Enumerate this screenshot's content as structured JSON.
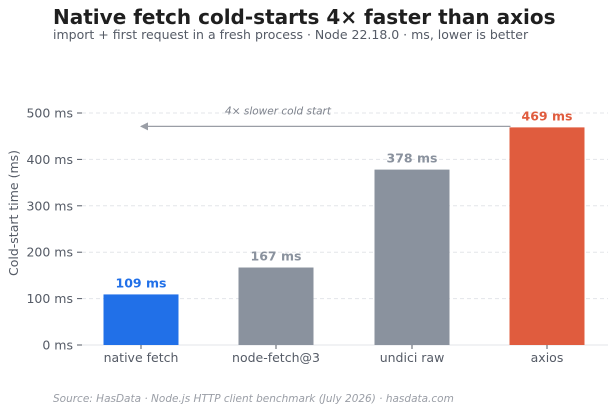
{
  "header": {
    "title": "Native fetch cold-starts 4× faster than axios",
    "subtitle": "import + first request in a fresh process · Node 22.18.0 · ms, lower is better"
  },
  "footer": {
    "source": "Source: HasData  ·  Node.js HTTP client benchmark (July 2026)  ·  hasdata.com"
  },
  "chart_data": {
    "type": "bar",
    "title": "Native fetch cold-starts 4× faster than axios",
    "subtitle": "import + first request in a fresh process · Node 22.18.0 · ms, lower is better",
    "xlabel": "",
    "ylabel": "Cold-start time (ms)",
    "categories": [
      "native fetch",
      "node-fetch@3",
      "undici raw",
      "axios"
    ],
    "values": [
      109,
      167,
      378,
      469
    ],
    "value_labels": [
      "109 ms",
      "167 ms",
      "378 ms",
      "469 ms"
    ],
    "colors": [
      "#2170e8",
      "#8a929e",
      "#8a929e",
      "#e05c3e"
    ],
    "label_colors": [
      "#2170e8",
      "#8a929e",
      "#8a929e",
      "#e05c3e"
    ],
    "ylim": [
      0,
      500
    ],
    "yticks": [
      0,
      100,
      200,
      300,
      400,
      500
    ],
    "ytick_labels": [
      "0 ms",
      "100 ms",
      "200 ms",
      "300 ms",
      "400 ms",
      "500 ms"
    ],
    "grid": true,
    "annotation": {
      "text": "4× slower cold start",
      "from_category": "axios",
      "to_category": "native fetch",
      "y": 469
    }
  }
}
